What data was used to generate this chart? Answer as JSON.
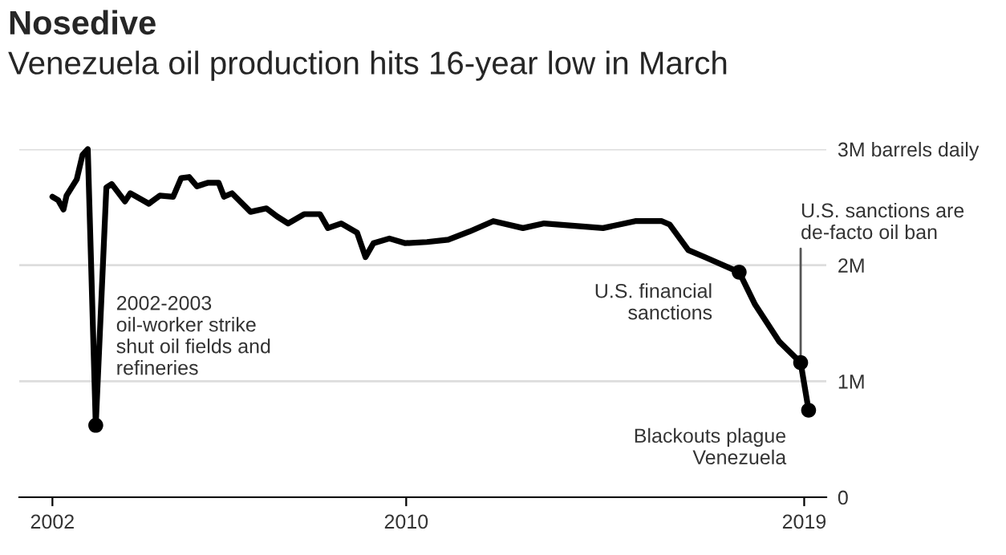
{
  "chart_data": {
    "type": "line",
    "title": "Nosedive",
    "subtitle": "Venezuela oil production hits 16-year low in March",
    "xlim": [
      2001.25,
      2019.5
    ],
    "xticks": [
      2002,
      2010,
      2019
    ],
    "ylim": [
      0,
      3
    ],
    "yticks": [
      {
        "value": 0,
        "label": "0"
      },
      {
        "value": 1,
        "label": "1M"
      },
      {
        "value": 2,
        "label": "2M"
      },
      {
        "value": 3,
        "label": "3M barrels daily"
      }
    ],
    "grid": "y",
    "legend": false,
    "series": [
      {
        "color": "#000000",
        "line_style": "solid",
        "x": [
          2002.0,
          2002.13,
          2002.25,
          2002.32,
          2002.55,
          2002.68,
          2002.8,
          2002.98,
          2003.22,
          2003.34,
          2003.64,
          2003.76,
          2004.18,
          2004.43,
          2004.73,
          2004.91,
          2005.09,
          2005.27,
          2005.51,
          2005.76,
          2005.88,
          2006.06,
          2006.48,
          2006.84,
          2007.08,
          2007.33,
          2007.69,
          2008.05,
          2008.23,
          2008.53,
          2008.89,
          2009.08,
          2009.26,
          2009.62,
          2009.98,
          2010.47,
          2010.95,
          2011.43,
          2011.97,
          2012.64,
          2013.12,
          2014.45,
          2015.18,
          2015.78,
          2015.96,
          2016.38,
          2016.75,
          2017.53,
          2017.89,
          2018.44,
          2018.92,
          2019.1
        ],
        "values": [
          2.59,
          2.56,
          2.48,
          2.6,
          2.74,
          2.95,
          3.0,
          0.62,
          2.67,
          2.7,
          2.55,
          2.62,
          2.53,
          2.6,
          2.59,
          2.75,
          2.76,
          2.68,
          2.71,
          2.71,
          2.59,
          2.62,
          2.46,
          2.49,
          2.42,
          2.36,
          2.44,
          2.44,
          2.32,
          2.36,
          2.28,
          2.07,
          2.19,
          2.23,
          2.19,
          2.2,
          2.22,
          2.29,
          2.38,
          2.32,
          2.36,
          2.32,
          2.38,
          2.38,
          2.35,
          2.13,
          2.07,
          1.94,
          1.66,
          1.34,
          1.16,
          0.75
        ]
      },
      {
        "type": "scatter",
        "color": "#000000",
        "marker": "circle",
        "x": [
          2002.98,
          2017.53,
          2018.92,
          2019.1
        ],
        "values": [
          0.62,
          1.94,
          1.16,
          0.75
        ]
      }
    ],
    "annotations": [
      "2002-2003\noil-worker strike\nshut oil fields and\nrefineries",
      {
        "text": "U.S. financial\nsanctions",
        "x": 2017.53,
        "y": 1.94
      },
      {
        "text": "U.S. sanctions are\nde-facto oil ban",
        "x": 2018.92,
        "y": 1.16
      },
      {
        "text": "Blackouts plague\nVenezuela",
        "x": 2019.1,
        "y": 0.75
      }
    ]
  }
}
